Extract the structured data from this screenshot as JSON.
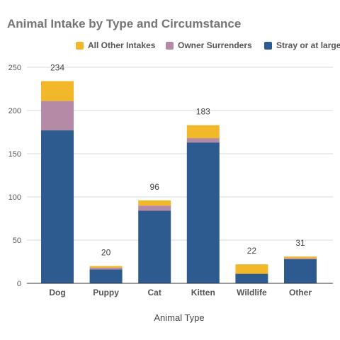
{
  "chart_data": {
    "type": "bar",
    "stacked": true,
    "title": "Animal Intake by Type and Circumstance",
    "xlabel": "Animal Type",
    "ylabel": "",
    "ylim": [
      0,
      250
    ],
    "yticks": [
      0,
      50,
      100,
      150,
      200,
      250
    ],
    "grid": true,
    "legend_position": "top",
    "categories": [
      "Dog",
      "Puppy",
      "Cat",
      "Kitten",
      "Wildlife",
      "Other"
    ],
    "series": [
      {
        "name": "Stray or at large",
        "color": "#2e5b8f",
        "values": [
          177,
          16,
          84,
          163,
          11,
          28
        ]
      },
      {
        "name": "Owner Surrenders",
        "color": "#b58aa7",
        "values": [
          34,
          2,
          6,
          5,
          0,
          1
        ]
      },
      {
        "name": "All Other Intakes",
        "color": "#f1b929",
        "values": [
          23,
          2,
          6,
          15,
          11,
          2
        ]
      }
    ],
    "totals": [
      234,
      20,
      96,
      183,
      22,
      31
    ],
    "legend_order": [
      "All Other Intakes",
      "Owner Surrenders",
      "Stray or at large"
    ]
  }
}
